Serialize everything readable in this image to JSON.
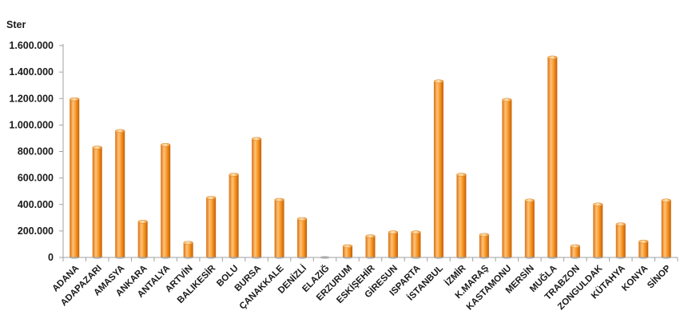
{
  "chart_data": {
    "type": "bar",
    "ylabel": "Ster",
    "xlabel": "",
    "ylim": [
      0,
      1600000
    ],
    "ytick_values": [
      0,
      200000,
      400000,
      600000,
      800000,
      1000000,
      1200000,
      1400000,
      1600000
    ],
    "ytick_labels": [
      "0",
      "200.000",
      "400.000",
      "600.000",
      "800.000",
      "1.000.000",
      "1.200.000",
      "1.400.000",
      "1.600.000"
    ],
    "grid": false,
    "legend": "none",
    "colors": {
      "bar_main": "#f28a1e",
      "bar_light": "#ffc37a",
      "bar_dark": "#c9600a",
      "axis": "#a0a0a0"
    },
    "categories": [
      "ADANA",
      "ADAPAZARI",
      "AMASYA",
      "ANKARA",
      "ANTALYA",
      "ARTVİN",
      "BALIKESİR",
      "BOLU",
      "BURSA",
      "ÇANAKKALE",
      "DENİZLİ",
      "ELAZIĞ",
      "ERZURUM",
      "ESKİŞEHİR",
      "GİRESUN",
      "ISPARTA",
      "İSTANBUL",
      "İZMİR",
      "K.MARAŞ",
      "KASTAMONU",
      "MERSİN",
      "MUĞLA",
      "TRABZON",
      "ZONGULDAK",
      "KÜTAHYA",
      "KONYA",
      "SİNOP"
    ],
    "values": [
      1195000,
      830000,
      955000,
      270000,
      850000,
      110000,
      450000,
      625000,
      895000,
      435000,
      290000,
      0,
      85000,
      160000,
      190000,
      190000,
      1330000,
      625000,
      170000,
      1190000,
      430000,
      1510000,
      85000,
      400000,
      250000,
      120000,
      430000
    ]
  }
}
